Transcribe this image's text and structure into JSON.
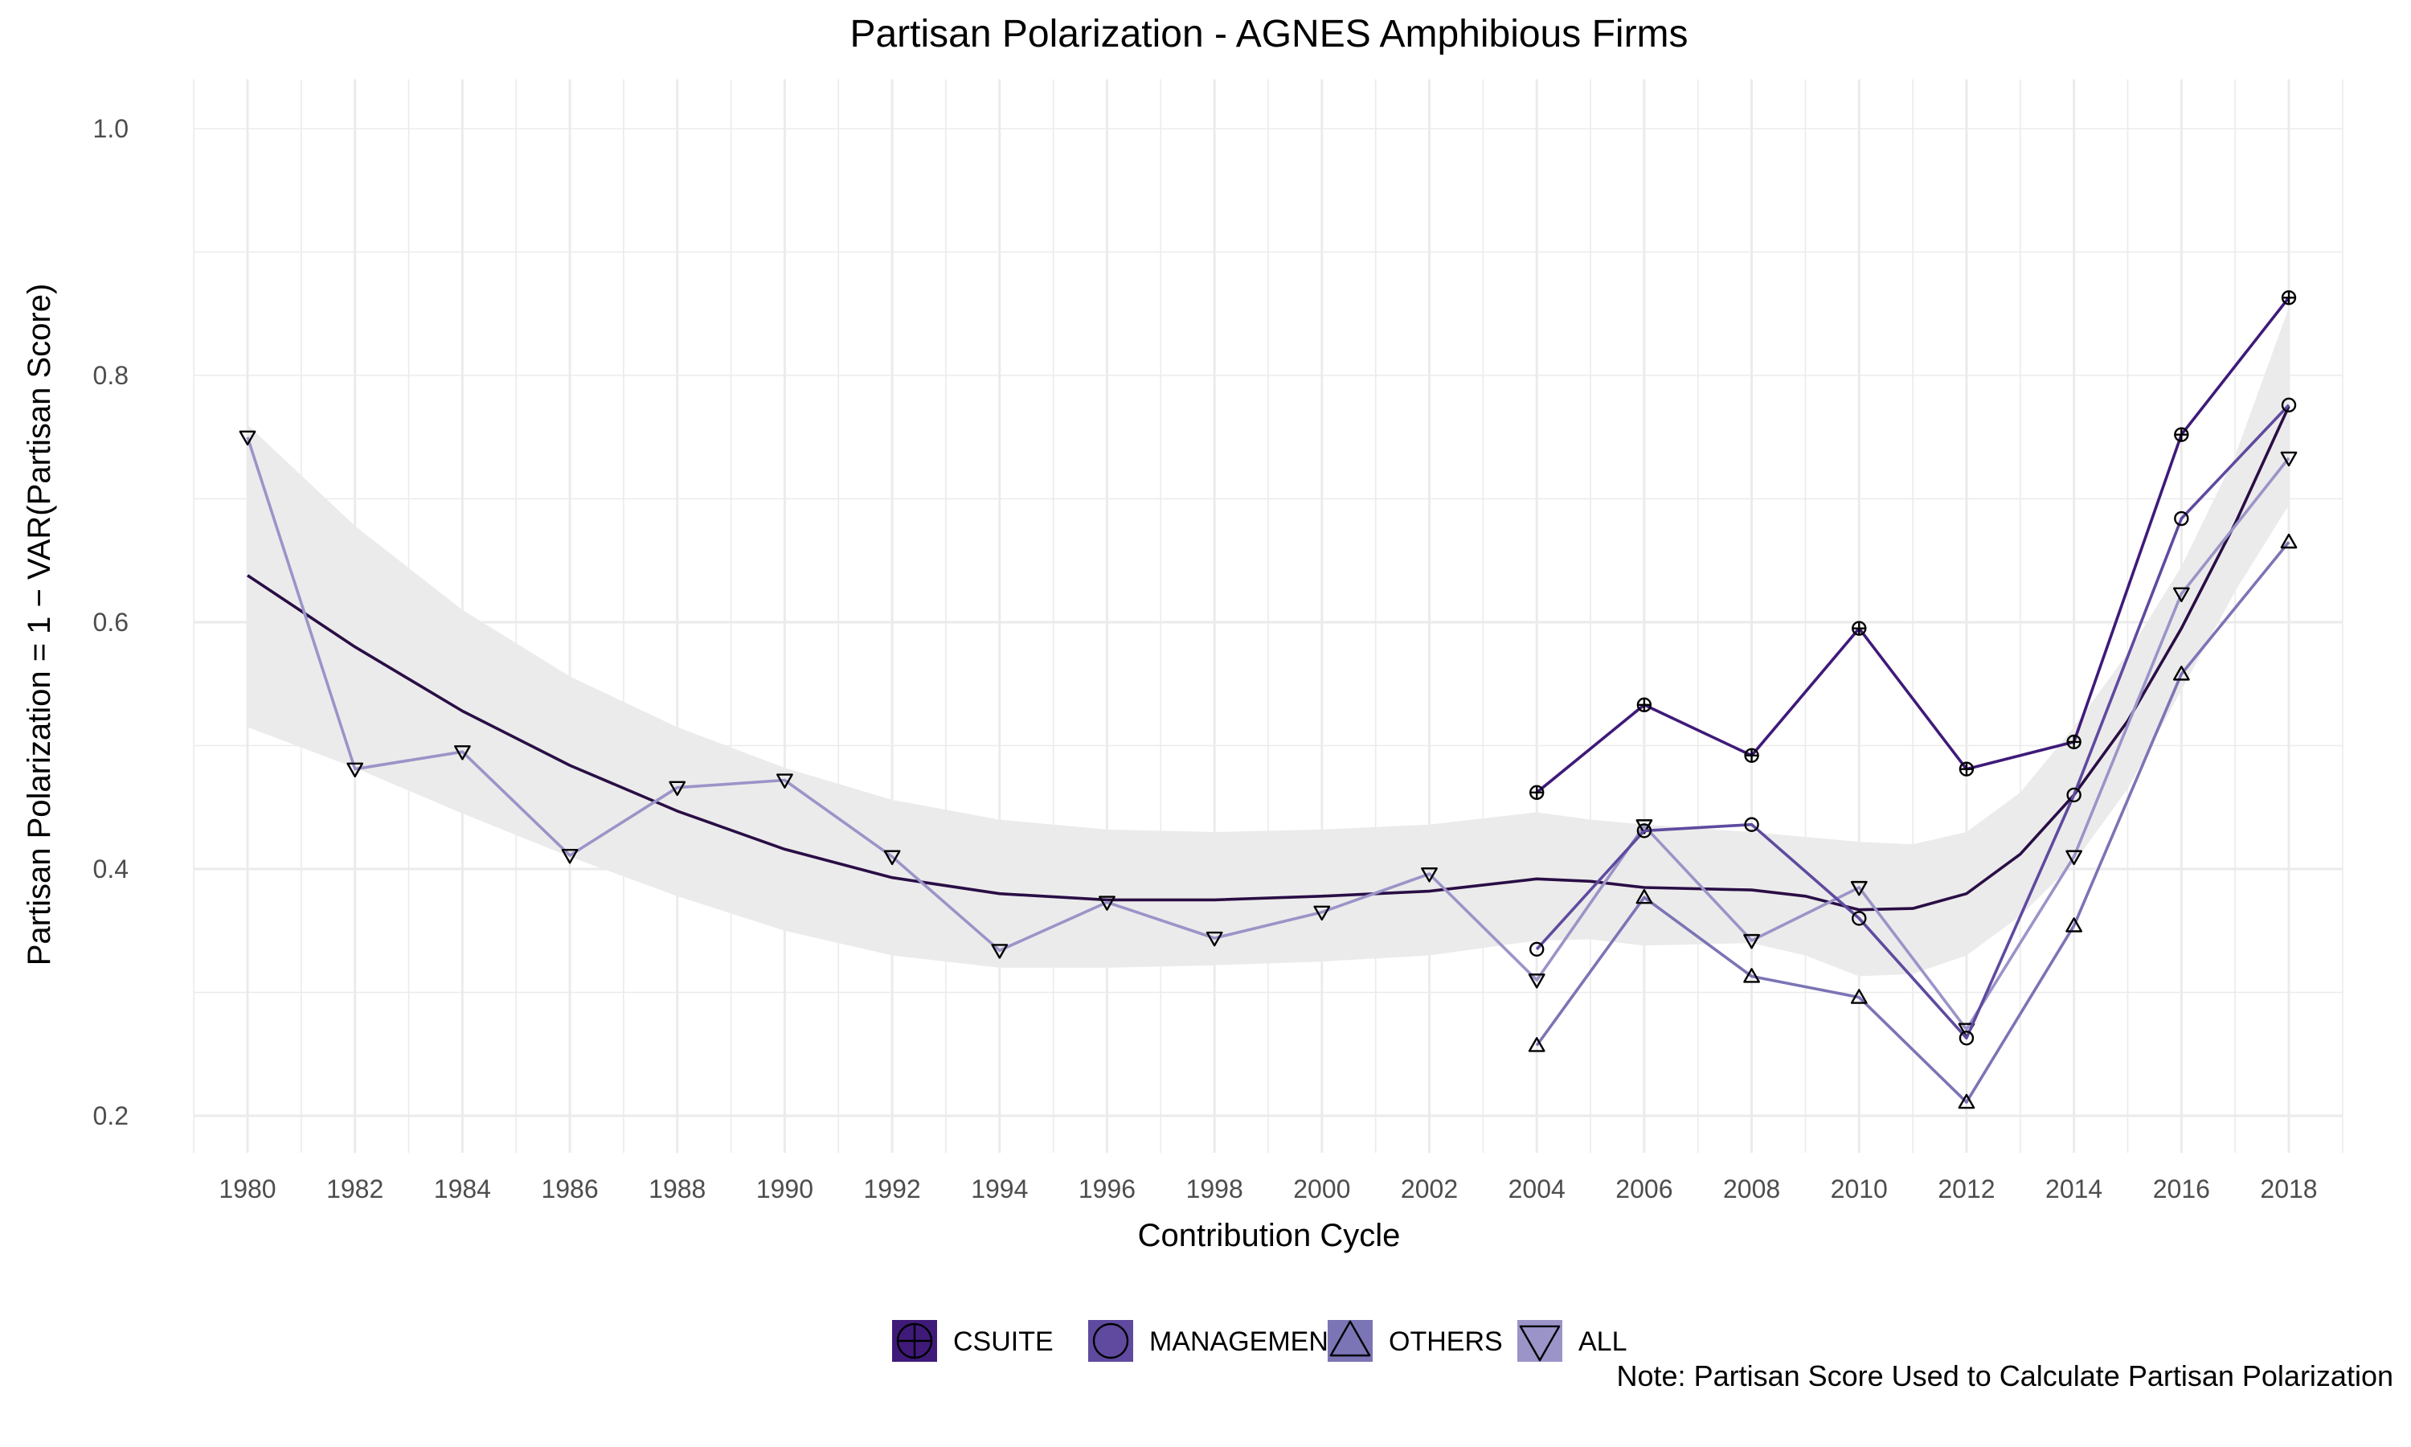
{
  "chart_data": {
    "type": "line",
    "title": "Partisan Polarization - AGNES Amphibious Firms",
    "xlabel": "Contribution Cycle",
    "ylabel": "Partisan Polarization = 1 − VAR(Partisan Score)",
    "note": "Note: Partisan Score Used to Calculate Partisan Polarization",
    "xlim": [
      1979,
      2019
    ],
    "ylim": [
      0.2,
      1.0
    ],
    "x_ticks": [
      1980,
      1982,
      1984,
      1986,
      1988,
      1990,
      1992,
      1994,
      1996,
      1998,
      2000,
      2002,
      2004,
      2006,
      2008,
      2010,
      2012,
      2014,
      2016,
      2018
    ],
    "y_ticks": [
      0.2,
      0.4,
      0.6,
      0.8,
      1.0
    ],
    "grid": true,
    "legend_position": "bottom",
    "series": [
      {
        "name": "CSUITE",
        "marker": "circle-plus",
        "color": "#3f1a79",
        "points": [
          [
            2004,
            0.462
          ],
          [
            2006,
            0.533
          ],
          [
            2008,
            0.492
          ],
          [
            2010,
            0.595
          ],
          [
            2012,
            0.481
          ],
          [
            2014,
            0.503
          ],
          [
            2016,
            0.752
          ],
          [
            2018,
            0.863
          ]
        ]
      },
      {
        "name": "MANAGEMENT",
        "marker": "circle",
        "color": "#5f4a9f",
        "points": [
          [
            2004,
            0.335
          ],
          [
            2006,
            0.431
          ],
          [
            2008,
            0.436
          ],
          [
            2010,
            0.36
          ],
          [
            2012,
            0.263
          ],
          [
            2014,
            0.46
          ],
          [
            2016,
            0.684
          ],
          [
            2018,
            0.776
          ]
        ]
      },
      {
        "name": "OTHERS",
        "marker": "triangle-up",
        "color": "#7b74b5",
        "points": [
          [
            2004,
            0.257
          ],
          [
            2006,
            0.377
          ],
          [
            2008,
            0.313
          ],
          [
            2010,
            0.296
          ],
          [
            2012,
            0.211
          ],
          [
            2014,
            0.354
          ],
          [
            2016,
            0.558
          ],
          [
            2018,
            0.665
          ]
        ]
      },
      {
        "name": "ALL",
        "marker": "triangle-down",
        "color": "#9a94c8",
        "points": [
          [
            1980,
            0.75
          ],
          [
            1982,
            0.481
          ],
          [
            1984,
            0.495
          ],
          [
            1986,
            0.411
          ],
          [
            1988,
            0.466
          ],
          [
            1990,
            0.472
          ],
          [
            1992,
            0.41
          ],
          [
            1994,
            0.334
          ],
          [
            1996,
            0.373
          ],
          [
            1998,
            0.344
          ],
          [
            2000,
            0.365
          ],
          [
            2002,
            0.396
          ],
          [
            2004,
            0.31
          ],
          [
            2006,
            0.435
          ],
          [
            2008,
            0.342
          ],
          [
            2010,
            0.385
          ],
          [
            2012,
            0.27
          ],
          [
            2014,
            0.41
          ],
          [
            2016,
            0.623
          ],
          [
            2018,
            0.733
          ]
        ]
      }
    ],
    "smooth": {
      "color": "#2a0e45",
      "band_color": "#ebebeb",
      "x": [
        1980,
        1982,
        1984,
        1986,
        1988,
        1990,
        1992,
        1994,
        1996,
        1998,
        2000,
        2002,
        2004,
        2005,
        2006,
        2008,
        2009,
        2010,
        2011,
        2012,
        2013,
        2014,
        2015,
        2016,
        2017,
        2018
      ],
      "y": [
        0.638,
        0.58,
        0.528,
        0.484,
        0.447,
        0.416,
        0.393,
        0.38,
        0.375,
        0.375,
        0.378,
        0.382,
        0.392,
        0.39,
        0.385,
        0.383,
        0.378,
        0.367,
        0.368,
        0.38,
        0.412,
        0.46,
        0.52,
        0.595,
        0.68,
        0.775
      ],
      "lower": [
        0.515,
        0.482,
        0.445,
        0.41,
        0.378,
        0.35,
        0.33,
        0.32,
        0.32,
        0.322,
        0.325,
        0.33,
        0.342,
        0.343,
        0.338,
        0.34,
        0.33,
        0.313,
        0.315,
        0.33,
        0.362,
        0.405,
        0.465,
        0.545,
        0.625,
        0.695
      ],
      "upper": [
        0.76,
        0.678,
        0.61,
        0.556,
        0.515,
        0.482,
        0.456,
        0.44,
        0.432,
        0.43,
        0.432,
        0.436,
        0.446,
        0.44,
        0.436,
        0.43,
        0.426,
        0.422,
        0.42,
        0.43,
        0.462,
        0.515,
        0.575,
        0.645,
        0.735,
        0.855
      ]
    }
  }
}
